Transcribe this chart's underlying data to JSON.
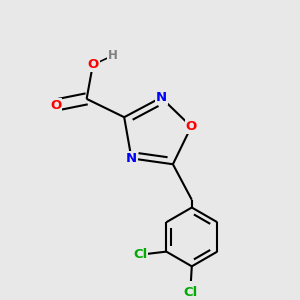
{
  "background_color": "#e8e8e8",
  "atom_colors": {
    "C": "#000000",
    "N": "#0000ff",
    "O": "#ff0000",
    "Cl": "#00aa00",
    "H": "#808080"
  },
  "bond_color": "#000000",
  "bond_width": 1.5,
  "figsize": [
    3.0,
    3.0
  ],
  "dpi": 100
}
